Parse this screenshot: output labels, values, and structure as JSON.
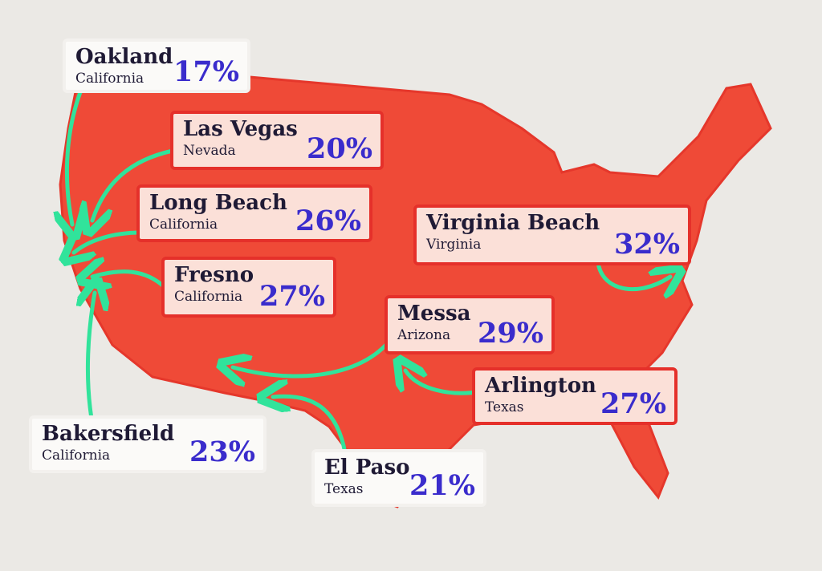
{
  "cities": [
    {
      "name": "Oakland",
      "state": "California",
      "percent": "17%"
    },
    {
      "name": "Las Vegas",
      "state": "Nevada",
      "percent": "20%"
    },
    {
      "name": "Long Beach",
      "state": "California",
      "percent": "26%"
    },
    {
      "name": "Fresno",
      "state": "California",
      "percent": "27%"
    },
    {
      "name": "Virginia Beach",
      "state": "Virginia",
      "percent": "32%"
    },
    {
      "name": "Messa",
      "state": "Arizona",
      "percent": "29%"
    },
    {
      "name": "Arlington",
      "state": "Texas",
      "percent": "27%"
    },
    {
      "name": "Bakersfield",
      "state": "California",
      "percent": "23%"
    },
    {
      "name": "El Paso",
      "state": "Texas",
      "percent": "21%"
    }
  ]
}
